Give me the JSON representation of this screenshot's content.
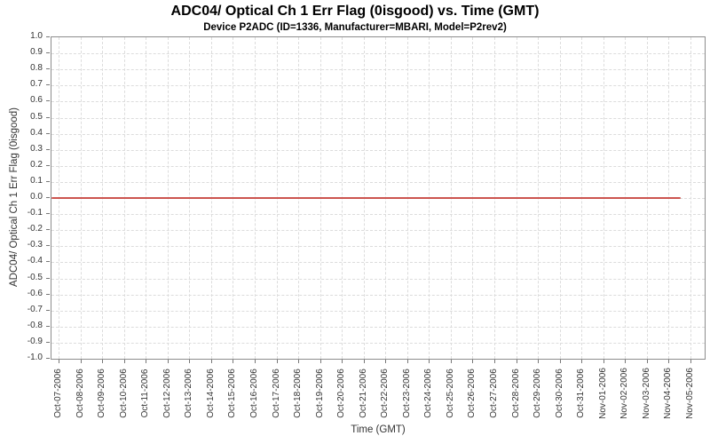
{
  "chart_data": {
    "type": "line",
    "title": "ADC04/ Optical Ch 1 Err Flag (0isgood) vs. Time (GMT)",
    "subtitle": "Device P2ADC (ID=1336, Manufacturer=MBARI, Model=P2rev2)",
    "xlabel": "Time (GMT)",
    "ylabel": "ADC04/ Optical Ch 1 Err Flag (0isgood)",
    "ylim": [
      -1.0,
      1.0
    ],
    "ytick_step": 0.1,
    "ytick_labels": [
      "1.0",
      "0.9",
      "0.8",
      "0.7",
      "0.6",
      "0.5",
      "0.4",
      "0.3",
      "0.2",
      "0.1",
      "0.0",
      "-0.1",
      "-0.2",
      "-0.3",
      "-0.4",
      "-0.5",
      "-0.6",
      "-0.7",
      "-0.8",
      "-0.9",
      "-1.0"
    ],
    "xtick_labels": [
      "Oct-07-2006",
      "Oct-08-2006",
      "Oct-09-2006",
      "Oct-10-2006",
      "Oct-11-2006",
      "Oct-12-2006",
      "Oct-13-2006",
      "Oct-14-2006",
      "Oct-15-2006",
      "Oct-16-2006",
      "Oct-17-2006",
      "Oct-18-2006",
      "Oct-19-2006",
      "Oct-20-2006",
      "Oct-21-2006",
      "Oct-22-2006",
      "Oct-23-2006",
      "Oct-24-2006",
      "Oct-25-2006",
      "Oct-26-2006",
      "Oct-27-2006",
      "Oct-28-2006",
      "Oct-29-2006",
      "Oct-30-2006",
      "Oct-31-2006",
      "Nov-01-2006",
      "Nov-02-2006",
      "Nov-03-2006",
      "Nov-04-2006",
      "Nov-05-2006"
    ],
    "grid": true,
    "legend": "none",
    "series": [
      {
        "name": "ADC04/ Optical Ch 1 Err Flag (0isgood)",
        "color": "#cc544f",
        "x": [
          "Oct-07-2006",
          "Oct-08-2006",
          "Oct-09-2006",
          "Oct-10-2006",
          "Oct-11-2006",
          "Oct-12-2006",
          "Oct-13-2006",
          "Oct-14-2006",
          "Oct-15-2006",
          "Oct-16-2006",
          "Oct-17-2006",
          "Oct-18-2006",
          "Oct-19-2006",
          "Oct-20-2006",
          "Oct-21-2006",
          "Oct-22-2006",
          "Oct-23-2006",
          "Oct-24-2006",
          "Oct-25-2006",
          "Oct-26-2006",
          "Oct-27-2006",
          "Oct-28-2006",
          "Oct-29-2006",
          "Oct-30-2006",
          "Oct-31-2006",
          "Nov-01-2006",
          "Nov-02-2006",
          "Nov-03-2006",
          "Nov-04-2006"
        ],
        "values": [
          0,
          0,
          0,
          0,
          0,
          0,
          0,
          0,
          0,
          0,
          0,
          0,
          0,
          0,
          0,
          0,
          0,
          0,
          0,
          0,
          0,
          0,
          0,
          0,
          0,
          0,
          0,
          0,
          0
        ],
        "x_end": "Nov-04-2006"
      }
    ],
    "colors": {
      "gridline": "#dcdcdc",
      "plot_border": "#8c8c8c",
      "tick_mark": "#777777",
      "tick_text": "#333333",
      "series_red": "#cc544f",
      "background": "#ffffff"
    }
  }
}
